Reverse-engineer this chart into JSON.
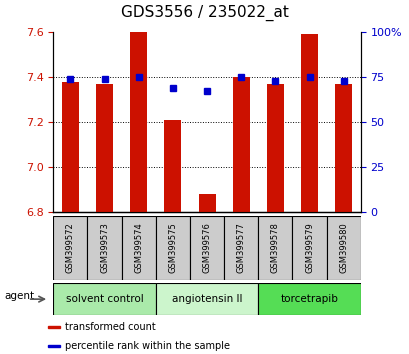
{
  "title": "GDS3556 / 235022_at",
  "samples": [
    "GSM399572",
    "GSM399573",
    "GSM399574",
    "GSM399575",
    "GSM399576",
    "GSM399577",
    "GSM399578",
    "GSM399579",
    "GSM399580"
  ],
  "red_values": [
    7.38,
    7.37,
    7.6,
    7.21,
    6.88,
    7.4,
    7.37,
    7.59,
    7.37
  ],
  "blue_values": [
    74,
    74,
    75,
    69,
    67,
    75,
    73,
    75,
    73
  ],
  "baseline": 6.8,
  "ylim_left": [
    6.8,
    7.6
  ],
  "ylim_right": [
    0,
    100
  ],
  "yticks_left": [
    6.8,
    7.0,
    7.2,
    7.4,
    7.6
  ],
  "yticks_right": [
    0,
    25,
    50,
    75,
    100
  ],
  "ytick_labels_right": [
    "0",
    "25",
    "50",
    "75",
    "100%"
  ],
  "groups": [
    {
      "label": "solvent control",
      "indices": [
        0,
        1,
        2
      ],
      "color": "#aaeaaa"
    },
    {
      "label": "angiotensin II",
      "indices": [
        3,
        4,
        5
      ],
      "color": "#ccf5cc"
    },
    {
      "label": "torcetrapib",
      "indices": [
        6,
        7,
        8
      ],
      "color": "#55dd55"
    }
  ],
  "bar_color": "#cc1100",
  "dot_color": "#0000cc",
  "agent_label": "agent",
  "legend_items": [
    {
      "color": "#cc1100",
      "label": "transformed count"
    },
    {
      "color": "#0000cc",
      "label": "percentile rank within the sample"
    }
  ],
  "sample_box_color": "#cccccc",
  "title_fontsize": 11,
  "axis_fontsize": 8,
  "legend_fontsize": 7,
  "group_fontsize": 7.5,
  "sample_fontsize": 6
}
